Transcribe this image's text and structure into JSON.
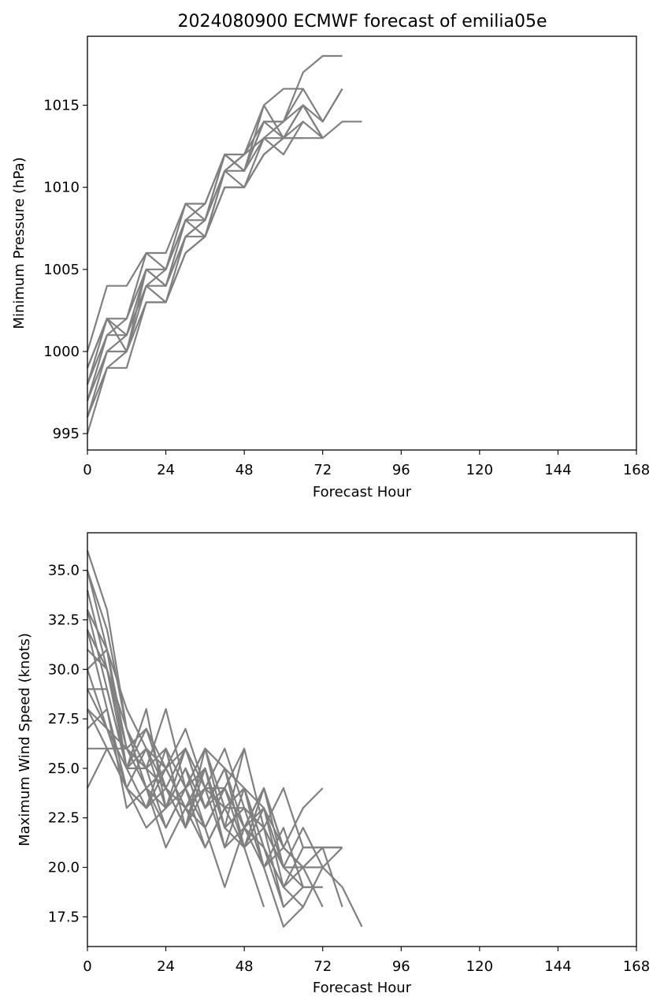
{
  "chart_data": [
    {
      "type": "line",
      "title": "2024080900 ECMWF forecast of emilia05e",
      "xlabel": "Forecast Hour",
      "ylabel": "Minimum Pressure (hPa)",
      "xlim": [
        0,
        168
      ],
      "ylim": [
        994,
        1019.2
      ],
      "xticks": [
        0,
        24,
        48,
        72,
        96,
        120,
        144,
        168
      ],
      "yticks": [
        995,
        1000,
        1005,
        1010,
        1015
      ],
      "line_color": "#808080",
      "grid": false,
      "series": [
        {
          "x": [
            0,
            6,
            12,
            18,
            24,
            30,
            36,
            42,
            48,
            54,
            60,
            66,
            72,
            78
          ],
          "y": [
            1000,
            1004,
            1004,
            1006,
            1006,
            1009,
            1009,
            1012,
            1012,
            1015,
            1016,
            1016,
            1014,
            1016
          ]
        },
        {
          "x": [
            0,
            6,
            12,
            18,
            24,
            30,
            36,
            42,
            48,
            54,
            60,
            66,
            72,
            78
          ],
          "y": [
            999,
            1002,
            1002,
            1006,
            1005,
            1008,
            1009,
            1012,
            1011,
            1014,
            1014,
            1017,
            1018,
            1018
          ]
        },
        {
          "x": [
            0,
            6,
            12,
            18,
            24,
            30,
            36,
            42,
            48,
            54,
            60,
            66,
            72,
            78,
            84
          ],
          "y": [
            998,
            1001,
            1002,
            1005,
            1004,
            1008,
            1008,
            1011,
            1012,
            1013,
            1013,
            1013,
            1013,
            1014,
            1014
          ]
        },
        {
          "x": [
            0,
            6,
            12,
            18,
            24,
            30,
            36,
            42,
            48,
            54,
            60,
            66,
            72,
            78
          ],
          "y": [
            997,
            1000,
            1001,
            1004,
            1004,
            1007,
            1008,
            1011,
            1011,
            1014,
            1013,
            1015,
            1014,
            1016
          ]
        },
        {
          "x": [
            0,
            6,
            12,
            18,
            24,
            30,
            36,
            42,
            48,
            54,
            60,
            66,
            72
          ],
          "y": [
            996,
            999,
            1000,
            1003,
            1003,
            1006,
            1007,
            1010,
            1010,
            1013,
            1014,
            1015,
            1013
          ]
        },
        {
          "x": [
            0,
            6,
            12,
            18,
            24,
            30,
            36,
            42,
            48,
            54,
            60,
            66
          ],
          "y": [
            995,
            999,
            999,
            1003,
            1003,
            1007,
            1007,
            1010,
            1010,
            1012,
            1013,
            1014
          ]
        },
        {
          "x": [
            0,
            6,
            12,
            18,
            24,
            30,
            36,
            42,
            48,
            54,
            60,
            66,
            72
          ],
          "y": [
            998,
            1002,
            1001,
            1005,
            1005,
            1009,
            1008,
            1012,
            1011,
            1013,
            1012,
            1014,
            1013
          ]
        },
        {
          "x": [
            0,
            6,
            12,
            18,
            24,
            30,
            36,
            42,
            48,
            54,
            60,
            66
          ],
          "y": [
            997,
            1001,
            1001,
            1004,
            1005,
            1008,
            1007,
            1011,
            1012,
            1014,
            1014,
            1016
          ]
        },
        {
          "x": [
            0,
            6,
            12,
            18,
            24,
            30,
            36,
            42,
            48,
            54,
            60,
            66,
            72
          ],
          "y": [
            999,
            1002,
            1000,
            1005,
            1004,
            1007,
            1008,
            1012,
            1011,
            1015,
            1013,
            1015,
            1013
          ]
        },
        {
          "x": [
            0,
            6,
            12,
            18,
            24,
            30,
            36,
            42,
            48,
            54,
            60,
            66
          ],
          "y": [
            996,
            1000,
            1000,
            1004,
            1003,
            1006,
            1007,
            1011,
            1010,
            1012,
            1013,
            1013
          ]
        }
      ]
    },
    {
      "type": "line",
      "title": "",
      "xlabel": "Forecast Hour",
      "ylabel": "Maximum Wind Speed (knots)",
      "xlim": [
        0,
        168
      ],
      "ylim": [
        16.0,
        36.9
      ],
      "xticks": [
        0,
        24,
        48,
        72,
        96,
        120,
        144,
        168
      ],
      "yticks": [
        17.5,
        20.0,
        22.5,
        25.0,
        27.5,
        30.0,
        32.5,
        35.0
      ],
      "ytick_labels": [
        "17.5",
        "20.0",
        "22.5",
        "25.0",
        "27.5",
        "30.0",
        "32.5",
        "35.0"
      ],
      "line_color": "#808080",
      "grid": false,
      "series": [
        {
          "x": [
            0,
            6,
            12,
            18,
            24,
            30,
            36,
            42,
            48,
            54,
            60,
            66,
            72
          ],
          "y": [
            36,
            33,
            27,
            25,
            28,
            24,
            26,
            25,
            22,
            24,
            21,
            23,
            24
          ]
        },
        {
          "x": [
            0,
            6,
            12,
            18,
            24,
            30,
            36,
            42,
            48,
            54,
            60,
            66,
            72,
            78
          ],
          "y": [
            35,
            31,
            28,
            26,
            25,
            27,
            24,
            26,
            23,
            22,
            24,
            21,
            21,
            21
          ]
        },
        {
          "x": [
            0,
            6,
            12,
            18,
            24,
            30,
            36,
            42,
            48,
            54,
            60,
            66
          ],
          "y": [
            34,
            30,
            26,
            27,
            24,
            26,
            23,
            25,
            24,
            21,
            19,
            18
          ]
        },
        {
          "x": [
            0,
            6,
            12,
            18,
            24,
            30,
            36,
            42,
            48,
            54,
            60,
            66,
            72,
            78
          ],
          "y": [
            33,
            29,
            25,
            28,
            23,
            25,
            22,
            24,
            26,
            22,
            20,
            22,
            20,
            21
          ]
        },
        {
          "x": [
            0,
            6,
            12,
            18,
            24,
            30,
            36,
            42,
            48,
            54,
            60,
            66,
            72,
            78,
            84
          ],
          "y": [
            32,
            28,
            24,
            26,
            24,
            22,
            25,
            21,
            24,
            23,
            21,
            20,
            20,
            19,
            17
          ]
        },
        {
          "x": [
            0,
            6,
            12,
            18,
            24,
            30,
            36,
            42,
            48,
            54,
            60,
            66,
            72
          ],
          "y": [
            31,
            30,
            27,
            24,
            25,
            23,
            21,
            23,
            21,
            24,
            20,
            19,
            19
          ]
        },
        {
          "x": [
            0,
            6,
            12,
            18,
            24,
            30,
            36,
            42,
            48,
            54,
            60,
            66,
            72
          ],
          "y": [
            30,
            27,
            26,
            25,
            22,
            24,
            26,
            22,
            23,
            20,
            22,
            19,
            19
          ]
        },
        {
          "x": [
            0,
            6,
            12,
            18,
            24,
            30,
            36,
            42,
            48,
            54,
            60,
            66
          ],
          "y": [
            29,
            29,
            25,
            23,
            26,
            22,
            24,
            24,
            22,
            21,
            18,
            19
          ]
        },
        {
          "x": [
            0,
            6,
            12,
            18,
            24,
            30,
            36,
            42,
            48,
            54,
            60,
            66,
            72,
            78
          ],
          "y": [
            28,
            26,
            24,
            22,
            23,
            25,
            23,
            25,
            21,
            23,
            19,
            21,
            21,
            21
          ]
        },
        {
          "x": [
            0,
            6,
            12,
            18,
            24,
            30,
            36,
            42,
            48,
            54,
            60,
            66,
            72
          ],
          "y": [
            27,
            28,
            23,
            24,
            22,
            24,
            22,
            19,
            22,
            20,
            17,
            18,
            20
          ]
        },
        {
          "x": [
            0,
            6,
            12,
            18,
            24,
            30,
            36,
            42,
            48,
            54
          ],
          "y": [
            26,
            26,
            26,
            24,
            21,
            23,
            25,
            22,
            21,
            18
          ]
        },
        {
          "x": [
            0,
            6,
            12,
            18,
            24,
            30,
            36,
            42,
            48,
            54,
            60,
            66,
            72,
            78
          ],
          "y": [
            24,
            26,
            24,
            23,
            24,
            22,
            26,
            23,
            24,
            21,
            19,
            20,
            21,
            18
          ]
        },
        {
          "x": [
            0,
            6,
            12,
            18,
            24,
            30,
            36,
            42,
            48,
            54,
            60,
            66
          ],
          "y": [
            30,
            31,
            25,
            27,
            25,
            26,
            24,
            23,
            24,
            20,
            21,
            20
          ]
        },
        {
          "x": [
            0,
            6,
            12,
            18,
            24,
            30,
            36,
            42,
            48,
            54,
            60,
            66,
            72
          ],
          "y": [
            35,
            32,
            27,
            24,
            23,
            26,
            23,
            24,
            22,
            23,
            20,
            20,
            18
          ]
        },
        {
          "x": [
            0,
            6,
            12,
            18,
            24,
            30,
            36,
            42,
            48
          ],
          "y": [
            32,
            30,
            25,
            25,
            26,
            24,
            25,
            22,
            26
          ]
        },
        {
          "x": [
            0,
            6,
            12,
            18,
            24,
            30,
            36,
            42,
            48,
            54,
            60
          ],
          "y": [
            29,
            27,
            24,
            23,
            25,
            23,
            22,
            24,
            21,
            22,
            20
          ]
        },
        {
          "x": [
            0,
            6,
            12,
            18,
            24,
            30,
            36,
            42,
            48,
            54,
            60,
            66,
            72
          ],
          "y": [
            33,
            31,
            26,
            25,
            24,
            23,
            24,
            21,
            22,
            24,
            21,
            20,
            21
          ]
        },
        {
          "x": [
            0,
            6,
            12,
            18,
            24,
            30,
            36,
            42,
            48,
            54,
            60
          ],
          "y": [
            28,
            27,
            25,
            26,
            23,
            24,
            21,
            23,
            23,
            22,
            18
          ]
        }
      ]
    }
  ]
}
